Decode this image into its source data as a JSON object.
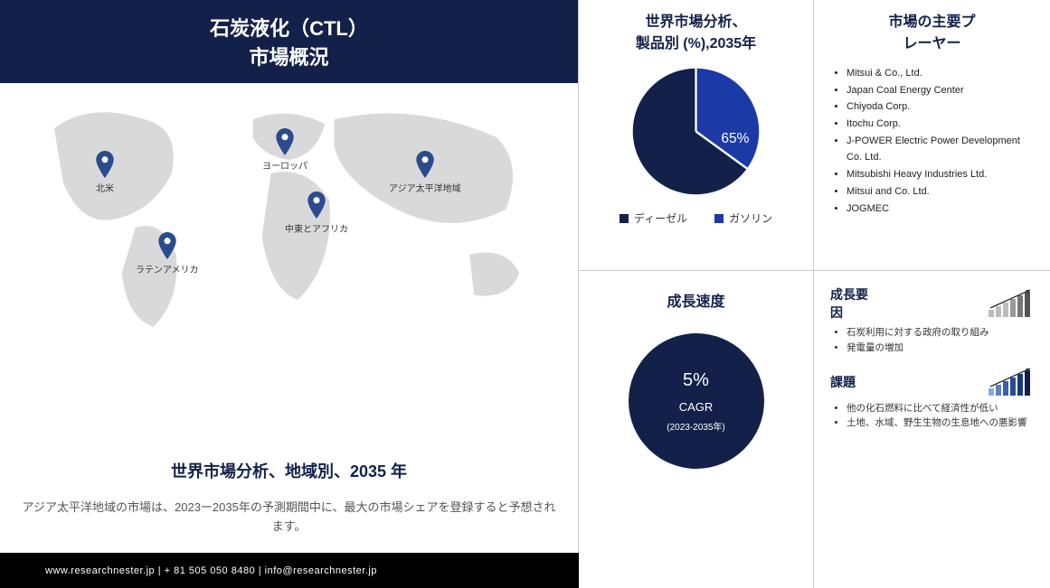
{
  "title_line1": "石炭液化（CTL）",
  "title_line2": "市場概況",
  "regions": {
    "na": "北米",
    "eu": "ヨーロッパ",
    "apac": "アジア太平洋地域",
    "mea": "中東とアフリカ",
    "latam": "ラテンアメリカ"
  },
  "region_analysis_title": "世界市場分析、地域別、2035 年",
  "region_analysis_text": "アジア太平洋地域の市場は、2023ー2035年の予測期間中に、最大の市場シェアを登録すると予想されます。",
  "footer": "www.researchnester.jp | + 81 505 050 8480 | info@researchnester.jp",
  "pie": {
    "title_line1": "世界市場分析、",
    "title_line2": "製品別 (%),2035年",
    "slice1_pct": 35,
    "slice2_pct": 65,
    "slice1_color": "#1b3aa5",
    "slice2_color": "#13214a",
    "label_shown": "65%",
    "legend": [
      {
        "label": "ディーゼル",
        "color": "#13214a"
      },
      {
        "label": "ガソリン",
        "color": "#1b3aa5"
      }
    ]
  },
  "players": {
    "title_line1": "市場の主要プ",
    "title_line2": "レーヤー",
    "list": [
      "Mitsui & Co., Ltd.",
      "Japan Coal Energy Center",
      "Chiyoda Corp.",
      "Itochu Corp.",
      "J-POWER Electric Power Development Co. Ltd.",
      "Mitsubishi Heavy Industries Ltd.",
      "Mitsui and Co. Ltd.",
      "JOGMEC"
    ]
  },
  "growth": {
    "title": "成長速度",
    "pct": "5%",
    "cagr": "CAGR",
    "range": "(2023-2035年)"
  },
  "factors": {
    "growth_title_l1": "成長要",
    "growth_title_l2": "因",
    "growth_items": [
      "石炭利用に対する政府の取り組み",
      "発電量の増加"
    ],
    "challenge_title": "課題",
    "challenge_items": [
      "他の化石燃料に比べて経済性が低い",
      "土地、水域、野生生物の生息地への悪影響"
    ]
  },
  "pin_color": "#2a4b8d",
  "map_color": "#d9d9d9"
}
